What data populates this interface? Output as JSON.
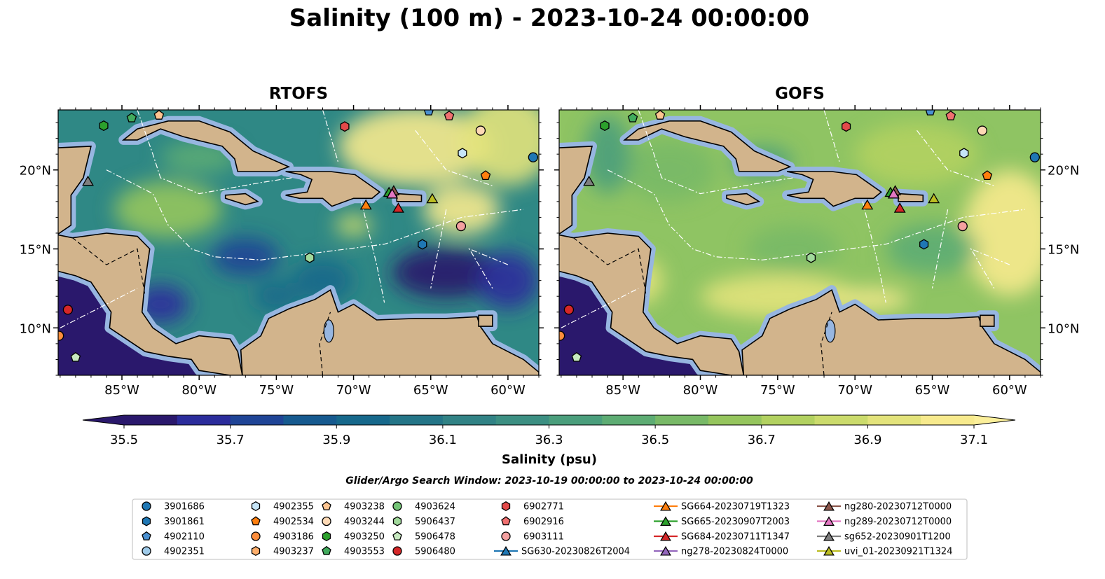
{
  "title": "Salinity (100 m) - 2023-10-24 00:00:00",
  "panels": [
    {
      "title": "RTOFS",
      "model": "rtofs"
    },
    {
      "title": "GOFS",
      "model": "gofs"
    }
  ],
  "chart_data": {
    "type": "map",
    "extent": {
      "lon": [
        -89.13,
        -58.0
      ],
      "lat": [
        7.0,
        23.8
      ]
    },
    "lon_ticks": [
      -85,
      -80,
      -75,
      -70,
      -65,
      -60
    ],
    "lon_tick_labels": [
      "85°W",
      "80°W",
      "75°W",
      "70°W",
      "65°W",
      "60°W"
    ],
    "lat_ticks": [
      10,
      15,
      20
    ],
    "lat_tick_labels": [
      "10°N",
      "15°N",
      "20°N"
    ],
    "colorbar": {
      "label": "Salinity (psu)",
      "levels_min": 35.5,
      "levels_max": 37.1,
      "step": 0.1,
      "ticks": [
        "35.5",
        "35.7",
        "35.9",
        "36.1",
        "36.3",
        "36.5",
        "36.7",
        "36.9",
        "37.1"
      ],
      "extend": "both",
      "colors": [
        "#2a186c",
        "#2b2c9b",
        "#1f4496",
        "#165a8f",
        "#16688b",
        "#247587",
        "#318285",
        "#3c8f82",
        "#4a9e7c",
        "#5dac73",
        "#78b967",
        "#95c55d",
        "#b2d160",
        "#cbdb6c",
        "#e3e37b",
        "#f7ea8d"
      ]
    },
    "search_window": "Glider/Argo Search Window: 2023-10-19 00:00:00 to 2023-10-24 00:00:00",
    "legend": [
      {
        "name": "3901686",
        "shape": "circle",
        "color": "#1f77b4",
        "lon": -58.37,
        "lat": 20.8
      },
      {
        "name": "3901861",
        "shape": "hexagon",
        "color": "#1f77b4",
        "lon": -65.54,
        "lat": 15.29
      },
      {
        "name": "4902110",
        "shape": "pentagon",
        "color": "#4a90d0",
        "lon": -65.13,
        "lat": 23.73
      },
      {
        "name": "4902351",
        "shape": "circle",
        "color": "#9ecae9"
      },
      {
        "name": "4902355",
        "shape": "hexagon",
        "color": "#c6e5f7",
        "lon": -62.95,
        "lat": 21.06
      },
      {
        "name": "4902534",
        "shape": "pentagon",
        "color": "#ff7f0e",
        "lon": -61.45,
        "lat": 19.64
      },
      {
        "name": "4903186",
        "shape": "circle",
        "color": "#fd8d3c",
        "lon": -89.08,
        "lat": 9.5
      },
      {
        "name": "4903237",
        "shape": "hexagon",
        "color": "#fdae6b"
      },
      {
        "name": "4903238",
        "shape": "pentagon",
        "color": "#fdc591",
        "lon": -82.6,
        "lat": 23.46
      },
      {
        "name": "4903244",
        "shape": "circle",
        "color": "#fdd9b5",
        "lon": -61.77,
        "lat": 22.49
      },
      {
        "name": "4903250",
        "shape": "hexagon",
        "color": "#2ca02c",
        "lon": -86.18,
        "lat": 22.8
      },
      {
        "name": "4903553",
        "shape": "pentagon",
        "color": "#41ab5d",
        "lon": -84.37,
        "lat": 23.29
      },
      {
        "name": "4903624",
        "shape": "circle",
        "color": "#74c476"
      },
      {
        "name": "5906437",
        "shape": "hexagon",
        "color": "#a1d99b",
        "lon": -72.84,
        "lat": 14.44
      },
      {
        "name": "5906478",
        "shape": "pentagon",
        "color": "#c7e9c0",
        "lon": -88.0,
        "lat": 8.13
      },
      {
        "name": "5906480",
        "shape": "circle",
        "color": "#d62728",
        "lon": -88.5,
        "lat": 11.15
      },
      {
        "name": "6902771",
        "shape": "hexagon",
        "color": "#e34a4a",
        "lon": -70.57,
        "lat": 22.75
      },
      {
        "name": "6902916",
        "shape": "pentagon",
        "color": "#f07070",
        "lon": -63.81,
        "lat": 23.42
      },
      {
        "name": "6903111",
        "shape": "circle",
        "color": "#f4a0a0",
        "lon": -63.04,
        "lat": 16.44
      },
      {
        "name": "SG630-20230826T2004",
        "shape": "glider",
        "color": "#1f77b4"
      },
      {
        "name": "SG664-20230719T1323",
        "shape": "glider",
        "color": "#ff7f0e",
        "lon": -69.2,
        "lat": 17.8
      },
      {
        "name": "SG665-20230907T2003",
        "shape": "glider",
        "color": "#2ca02c",
        "lon": -67.7,
        "lat": 18.6
      },
      {
        "name": "SG684-20230711T1347",
        "shape": "glider",
        "color": "#d62728",
        "lon": -67.1,
        "lat": 17.6
      },
      {
        "name": "ng278-20230824T0000",
        "shape": "glider",
        "color": "#9467bd"
      },
      {
        "name": "ng280-20230712T0000",
        "shape": "glider",
        "color": "#8c564b",
        "lon": -67.4,
        "lat": 18.7
      },
      {
        "name": "ng289-20230712T0000",
        "shape": "glider",
        "color": "#e377c2",
        "lon": -67.5,
        "lat": 18.5
      },
      {
        "name": "sg652-20230901T1200",
        "shape": "glider",
        "color": "#7f7f7f",
        "lon": -87.2,
        "lat": 19.3
      },
      {
        "name": "uvi_01-20230921T1324",
        "shape": "glider",
        "color": "#bcbd22",
        "lon": -64.9,
        "lat": 18.2
      }
    ]
  }
}
